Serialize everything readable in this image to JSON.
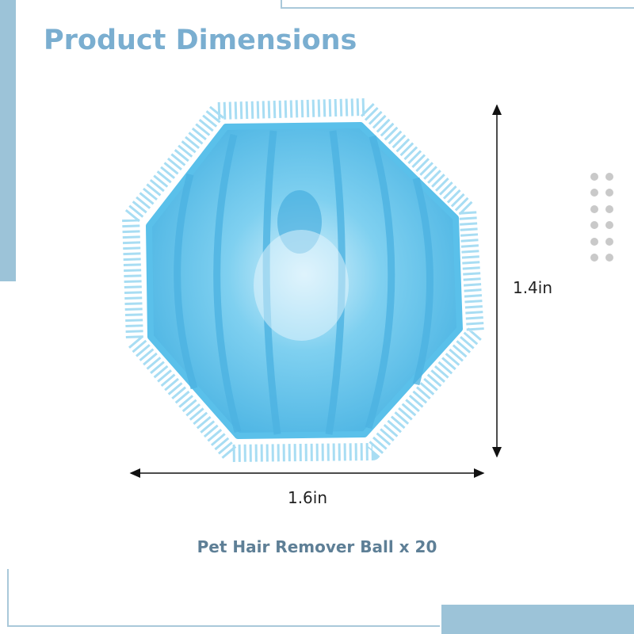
{
  "header": {
    "title": "Product Dimensions"
  },
  "dimensions": {
    "height": "1.4in",
    "width": "1.6in"
  },
  "caption": "Pet Hair Remover Ball x 20"
}
